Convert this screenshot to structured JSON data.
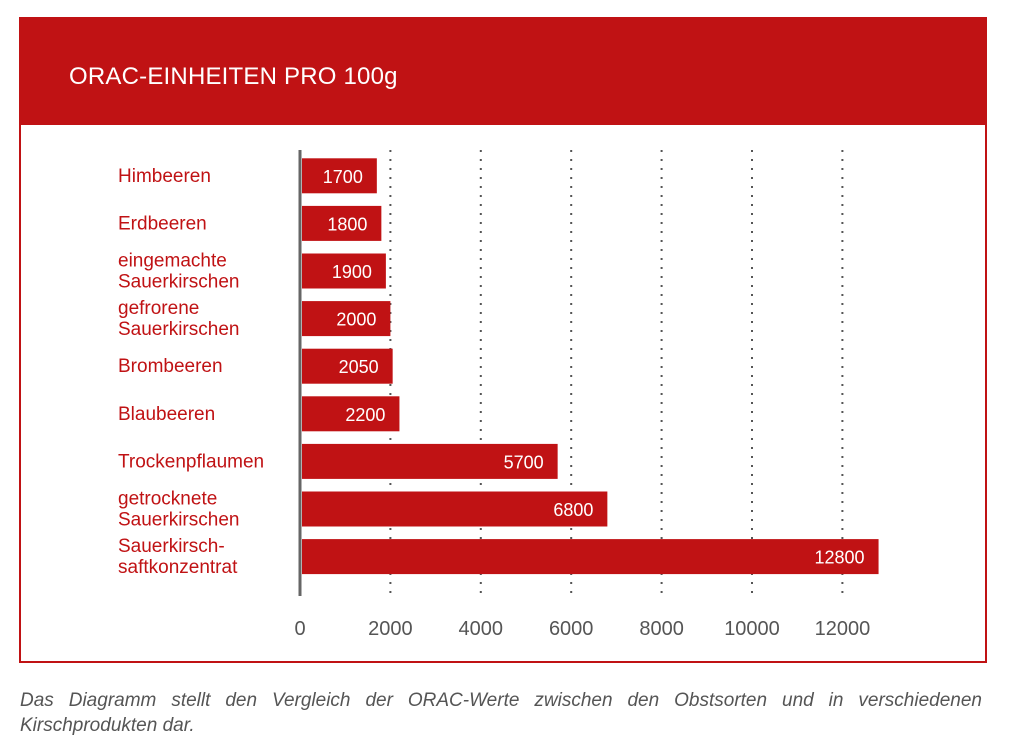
{
  "chart_data": {
    "type": "bar",
    "orientation": "horizontal",
    "title": "ORAC-EINHEITEN PRO 100g",
    "categories": [
      [
        "Himbeeren"
      ],
      [
        "Erdbeeren"
      ],
      [
        "eingemachte",
        "Sauerkirschen"
      ],
      [
        "gefrorene",
        "Sauerkirschen"
      ],
      [
        "Brombeeren"
      ],
      [
        "Blaubeeren"
      ],
      [
        "Trockenpflaumen"
      ],
      [
        "getrocknete",
        "Sauerkirschen"
      ],
      [
        "Sauerkirsch-",
        "saftkonzentrat"
      ]
    ],
    "values": [
      1700,
      1800,
      1900,
      2000,
      2050,
      2200,
      5700,
      6800,
      12800
    ],
    "xticks": [
      0,
      2000,
      4000,
      6000,
      8000,
      10000,
      12000
    ],
    "xlim": [
      0,
      12800
    ],
    "grid": "vertical dotted",
    "data_labels": true,
    "colors": {
      "bar": "#c01214",
      "label": "#c01214",
      "tick": "#555555",
      "grid": "#555555"
    }
  },
  "caption": "Das Diagramm stellt den Vergleich der ORAC-Werte zwischen den Obstsorten und in verschiedenen Kirschprodukten dar."
}
